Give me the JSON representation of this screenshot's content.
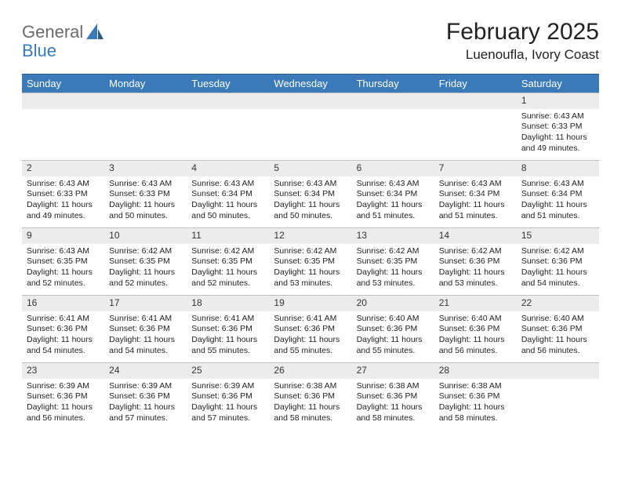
{
  "logo": {
    "text_general": "General",
    "text_blue": "Blue"
  },
  "title": "February 2025",
  "location": "Luenoufla, Ivory Coast",
  "colors": {
    "header_bg": "#3a7ab8",
    "header_border_top": "#2a5c8a",
    "daynum_bg": "#ececec",
    "daynum_border": "#bfbfbf",
    "text": "#222222",
    "logo_gray": "#6b6b6b",
    "logo_blue": "#3a7ab8"
  },
  "typography": {
    "title_fontsize": 30,
    "location_fontsize": 17,
    "weekday_fontsize": 13,
    "daynum_fontsize": 12,
    "body_fontsize": 10.5
  },
  "weekdays": [
    "Sunday",
    "Monday",
    "Tuesday",
    "Wednesday",
    "Thursday",
    "Friday",
    "Saturday"
  ],
  "grid": [
    [
      null,
      null,
      null,
      null,
      null,
      null,
      {
        "n": "1",
        "sr": "Sunrise: 6:43 AM",
        "ss": "Sunset: 6:33 PM",
        "dl": "Daylight: 11 hours and 49 minutes."
      }
    ],
    [
      {
        "n": "2",
        "sr": "Sunrise: 6:43 AM",
        "ss": "Sunset: 6:33 PM",
        "dl": "Daylight: 11 hours and 49 minutes."
      },
      {
        "n": "3",
        "sr": "Sunrise: 6:43 AM",
        "ss": "Sunset: 6:33 PM",
        "dl": "Daylight: 11 hours and 50 minutes."
      },
      {
        "n": "4",
        "sr": "Sunrise: 6:43 AM",
        "ss": "Sunset: 6:34 PM",
        "dl": "Daylight: 11 hours and 50 minutes."
      },
      {
        "n": "5",
        "sr": "Sunrise: 6:43 AM",
        "ss": "Sunset: 6:34 PM",
        "dl": "Daylight: 11 hours and 50 minutes."
      },
      {
        "n": "6",
        "sr": "Sunrise: 6:43 AM",
        "ss": "Sunset: 6:34 PM",
        "dl": "Daylight: 11 hours and 51 minutes."
      },
      {
        "n": "7",
        "sr": "Sunrise: 6:43 AM",
        "ss": "Sunset: 6:34 PM",
        "dl": "Daylight: 11 hours and 51 minutes."
      },
      {
        "n": "8",
        "sr": "Sunrise: 6:43 AM",
        "ss": "Sunset: 6:34 PM",
        "dl": "Daylight: 11 hours and 51 minutes."
      }
    ],
    [
      {
        "n": "9",
        "sr": "Sunrise: 6:43 AM",
        "ss": "Sunset: 6:35 PM",
        "dl": "Daylight: 11 hours and 52 minutes."
      },
      {
        "n": "10",
        "sr": "Sunrise: 6:42 AM",
        "ss": "Sunset: 6:35 PM",
        "dl": "Daylight: 11 hours and 52 minutes."
      },
      {
        "n": "11",
        "sr": "Sunrise: 6:42 AM",
        "ss": "Sunset: 6:35 PM",
        "dl": "Daylight: 11 hours and 52 minutes."
      },
      {
        "n": "12",
        "sr": "Sunrise: 6:42 AM",
        "ss": "Sunset: 6:35 PM",
        "dl": "Daylight: 11 hours and 53 minutes."
      },
      {
        "n": "13",
        "sr": "Sunrise: 6:42 AM",
        "ss": "Sunset: 6:35 PM",
        "dl": "Daylight: 11 hours and 53 minutes."
      },
      {
        "n": "14",
        "sr": "Sunrise: 6:42 AM",
        "ss": "Sunset: 6:36 PM",
        "dl": "Daylight: 11 hours and 53 minutes."
      },
      {
        "n": "15",
        "sr": "Sunrise: 6:42 AM",
        "ss": "Sunset: 6:36 PM",
        "dl": "Daylight: 11 hours and 54 minutes."
      }
    ],
    [
      {
        "n": "16",
        "sr": "Sunrise: 6:41 AM",
        "ss": "Sunset: 6:36 PM",
        "dl": "Daylight: 11 hours and 54 minutes."
      },
      {
        "n": "17",
        "sr": "Sunrise: 6:41 AM",
        "ss": "Sunset: 6:36 PM",
        "dl": "Daylight: 11 hours and 54 minutes."
      },
      {
        "n": "18",
        "sr": "Sunrise: 6:41 AM",
        "ss": "Sunset: 6:36 PM",
        "dl": "Daylight: 11 hours and 55 minutes."
      },
      {
        "n": "19",
        "sr": "Sunrise: 6:41 AM",
        "ss": "Sunset: 6:36 PM",
        "dl": "Daylight: 11 hours and 55 minutes."
      },
      {
        "n": "20",
        "sr": "Sunrise: 6:40 AM",
        "ss": "Sunset: 6:36 PM",
        "dl": "Daylight: 11 hours and 55 minutes."
      },
      {
        "n": "21",
        "sr": "Sunrise: 6:40 AM",
        "ss": "Sunset: 6:36 PM",
        "dl": "Daylight: 11 hours and 56 minutes."
      },
      {
        "n": "22",
        "sr": "Sunrise: 6:40 AM",
        "ss": "Sunset: 6:36 PM",
        "dl": "Daylight: 11 hours and 56 minutes."
      }
    ],
    [
      {
        "n": "23",
        "sr": "Sunrise: 6:39 AM",
        "ss": "Sunset: 6:36 PM",
        "dl": "Daylight: 11 hours and 56 minutes."
      },
      {
        "n": "24",
        "sr": "Sunrise: 6:39 AM",
        "ss": "Sunset: 6:36 PM",
        "dl": "Daylight: 11 hours and 57 minutes."
      },
      {
        "n": "25",
        "sr": "Sunrise: 6:39 AM",
        "ss": "Sunset: 6:36 PM",
        "dl": "Daylight: 11 hours and 57 minutes."
      },
      {
        "n": "26",
        "sr": "Sunrise: 6:38 AM",
        "ss": "Sunset: 6:36 PM",
        "dl": "Daylight: 11 hours and 58 minutes."
      },
      {
        "n": "27",
        "sr": "Sunrise: 6:38 AM",
        "ss": "Sunset: 6:36 PM",
        "dl": "Daylight: 11 hours and 58 minutes."
      },
      {
        "n": "28",
        "sr": "Sunrise: 6:38 AM",
        "ss": "Sunset: 6:36 PM",
        "dl": "Daylight: 11 hours and 58 minutes."
      },
      null
    ]
  ]
}
